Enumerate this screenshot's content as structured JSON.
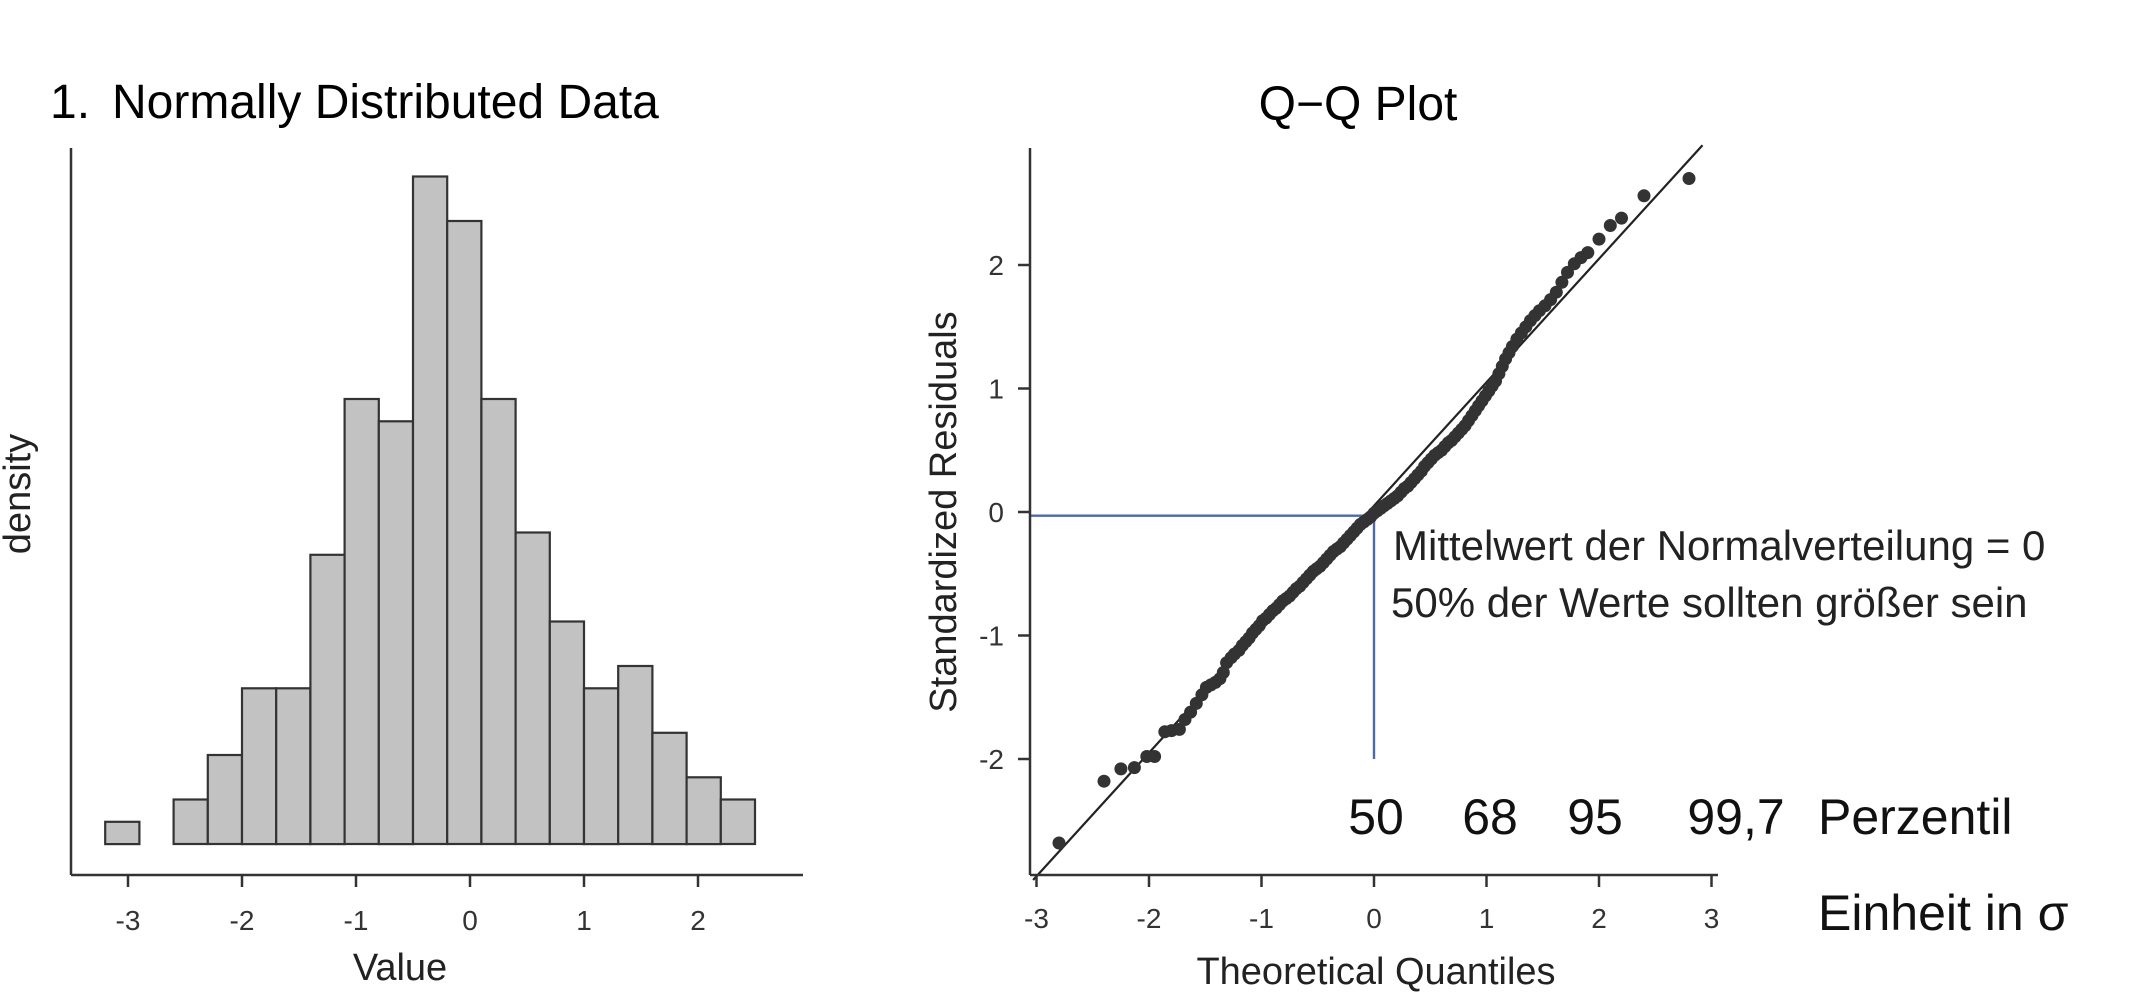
{
  "chart_data": [
    {
      "type": "bar",
      "number": "1.",
      "title": "Normally Distributed Data",
      "xlabel": "Value",
      "ylabel": "density",
      "xlim": [
        -3.3,
        2.9
      ],
      "xticks": [
        "-3",
        "-2",
        "-1",
        "0",
        "1",
        "2"
      ],
      "bin_edges": [
        -3.2,
        -2.9,
        -2.6,
        -2.3,
        -2.0,
        -1.7,
        -1.4,
        -1.1,
        -0.8,
        -0.5,
        -0.2,
        0.1,
        0.4,
        0.7,
        1.0,
        1.3,
        1.6,
        1.9,
        2.2,
        2.5
      ],
      "values": [
        1,
        0,
        2,
        4,
        7,
        7,
        13,
        20,
        19,
        30,
        28,
        20,
        14,
        10,
        7,
        8,
        5,
        3,
        2
      ],
      "ylim": [
        0,
        31.5
      ],
      "bar_color": "#c2c2c2",
      "edge_color": "#333333"
    },
    {
      "type": "scatter",
      "title": "Q−Q Plot",
      "xlabel": "Theoretical Quantiles",
      "ylabel": "Standardized Residuals",
      "xlim": [
        -3.08,
        3.0
      ],
      "ylim": [
        -2.95,
        2.98
      ],
      "xticks": [
        "-3",
        "-2",
        "-1",
        "0",
        "1",
        "2",
        "3"
      ],
      "yticks": [
        "-2",
        "-1",
        "0",
        "1",
        "2"
      ],
      "reference_line": {
        "intercept": 0.05,
        "slope": 1.0
      },
      "point_color": "#333333",
      "points": [
        [
          -2.8,
          -2.68
        ],
        [
          -2.4,
          -2.18
        ],
        [
          -2.25,
          -2.08
        ],
        [
          -2.13,
          -2.07
        ],
        [
          -2.02,
          -1.98
        ],
        [
          -1.95,
          -1.98
        ],
        [
          -1.86,
          -1.78
        ],
        [
          -1.8,
          -1.77
        ],
        [
          -1.73,
          -1.76
        ],
        [
          -1.68,
          -1.68
        ],
        [
          -1.63,
          -1.62
        ],
        [
          -1.58,
          -1.55
        ],
        [
          -1.53,
          -1.48
        ],
        [
          -1.49,
          -1.42
        ],
        [
          -1.45,
          -1.4
        ],
        [
          -1.41,
          -1.38
        ],
        [
          -1.37,
          -1.35
        ],
        [
          -1.34,
          -1.3
        ],
        [
          -1.31,
          -1.22
        ],
        [
          -1.27,
          -1.18
        ],
        [
          -1.24,
          -1.15
        ],
        [
          -1.2,
          -1.12
        ],
        [
          -1.17,
          -1.08
        ],
        [
          -1.14,
          -1.05
        ],
        [
          -1.11,
          -1.02
        ],
        [
          -1.08,
          -0.98
        ],
        [
          -1.05,
          -0.95
        ],
        [
          -1.02,
          -0.92
        ],
        [
          -0.99,
          -0.88
        ],
        [
          -0.96,
          -0.86
        ],
        [
          -0.93,
          -0.83
        ],
        [
          -0.9,
          -0.8
        ],
        [
          -0.87,
          -0.78
        ],
        [
          -0.84,
          -0.75
        ],
        [
          -0.81,
          -0.72
        ],
        [
          -0.78,
          -0.7
        ],
        [
          -0.75,
          -0.68
        ],
        [
          -0.72,
          -0.65
        ],
        [
          -0.69,
          -0.62
        ],
        [
          -0.66,
          -0.6
        ],
        [
          -0.63,
          -0.57
        ],
        [
          -0.6,
          -0.54
        ],
        [
          -0.57,
          -0.51
        ],
        [
          -0.54,
          -0.48
        ],
        [
          -0.51,
          -0.46
        ],
        [
          -0.48,
          -0.44
        ],
        [
          -0.45,
          -0.41
        ],
        [
          -0.42,
          -0.38
        ],
        [
          -0.39,
          -0.35
        ],
        [
          -0.36,
          -0.32
        ],
        [
          -0.33,
          -0.3
        ],
        [
          -0.3,
          -0.28
        ],
        [
          -0.27,
          -0.25
        ],
        [
          -0.24,
          -0.22
        ],
        [
          -0.21,
          -0.19
        ],
        [
          -0.18,
          -0.16
        ],
        [
          -0.15,
          -0.13
        ],
        [
          -0.12,
          -0.1
        ],
        [
          -0.09,
          -0.08
        ],
        [
          -0.06,
          -0.06
        ],
        [
          -0.03,
          -0.04
        ],
        [
          0.0,
          -0.01
        ],
        [
          0.03,
          0.01
        ],
        [
          0.06,
          0.03
        ],
        [
          0.09,
          0.05
        ],
        [
          0.12,
          0.07
        ],
        [
          0.15,
          0.09
        ],
        [
          0.18,
          0.11
        ],
        [
          0.21,
          0.13
        ],
        [
          0.24,
          0.16
        ],
        [
          0.27,
          0.19
        ],
        [
          0.3,
          0.21
        ],
        [
          0.33,
          0.24
        ],
        [
          0.36,
          0.27
        ],
        [
          0.39,
          0.3
        ],
        [
          0.42,
          0.33
        ],
        [
          0.45,
          0.37
        ],
        [
          0.48,
          0.4
        ],
        [
          0.51,
          0.43
        ],
        [
          0.54,
          0.46
        ],
        [
          0.57,
          0.48
        ],
        [
          0.6,
          0.5
        ],
        [
          0.63,
          0.53
        ],
        [
          0.66,
          0.56
        ],
        [
          0.69,
          0.58
        ],
        [
          0.72,
          0.61
        ],
        [
          0.75,
          0.64
        ],
        [
          0.78,
          0.67
        ],
        [
          0.81,
          0.7
        ],
        [
          0.84,
          0.74
        ],
        [
          0.87,
          0.78
        ],
        [
          0.9,
          0.82
        ],
        [
          0.93,
          0.86
        ],
        [
          0.96,
          0.9
        ],
        [
          0.99,
          0.94
        ],
        [
          1.02,
          0.98
        ],
        [
          1.05,
          1.02
        ],
        [
          1.08,
          1.06
        ],
        [
          1.11,
          1.12
        ],
        [
          1.14,
          1.18
        ],
        [
          1.17,
          1.24
        ],
        [
          1.2,
          1.29
        ],
        [
          1.23,
          1.34
        ],
        [
          1.27,
          1.4
        ],
        [
          1.31,
          1.45
        ],
        [
          1.35,
          1.5
        ],
        [
          1.39,
          1.55
        ],
        [
          1.43,
          1.59
        ],
        [
          1.47,
          1.63
        ],
        [
          1.52,
          1.67
        ],
        [
          1.57,
          1.72
        ],
        [
          1.62,
          1.78
        ],
        [
          1.67,
          1.86
        ],
        [
          1.72,
          1.94
        ],
        [
          1.78,
          2.01
        ],
        [
          1.84,
          2.06
        ],
        [
          1.9,
          2.1
        ],
        [
          2.0,
          2.21
        ],
        [
          2.1,
          2.32
        ],
        [
          2.2,
          2.38
        ],
        [
          2.4,
          2.56
        ],
        [
          2.8,
          2.7
        ]
      ],
      "guide": {
        "color": "#4a6ab0",
        "x": 0,
        "y": -0.03,
        "y_bottom": -2.0
      },
      "annotations": {
        "mean_line": "Mittelwert der Normalverteilung = 0",
        "half_line": "50% der Werte sollten größer sein",
        "percentiles": [
          "50",
          "68",
          "95",
          "99,7"
        ],
        "percentile_label": "Perzentil",
        "unit_label": "Einheit in σ"
      }
    }
  ]
}
